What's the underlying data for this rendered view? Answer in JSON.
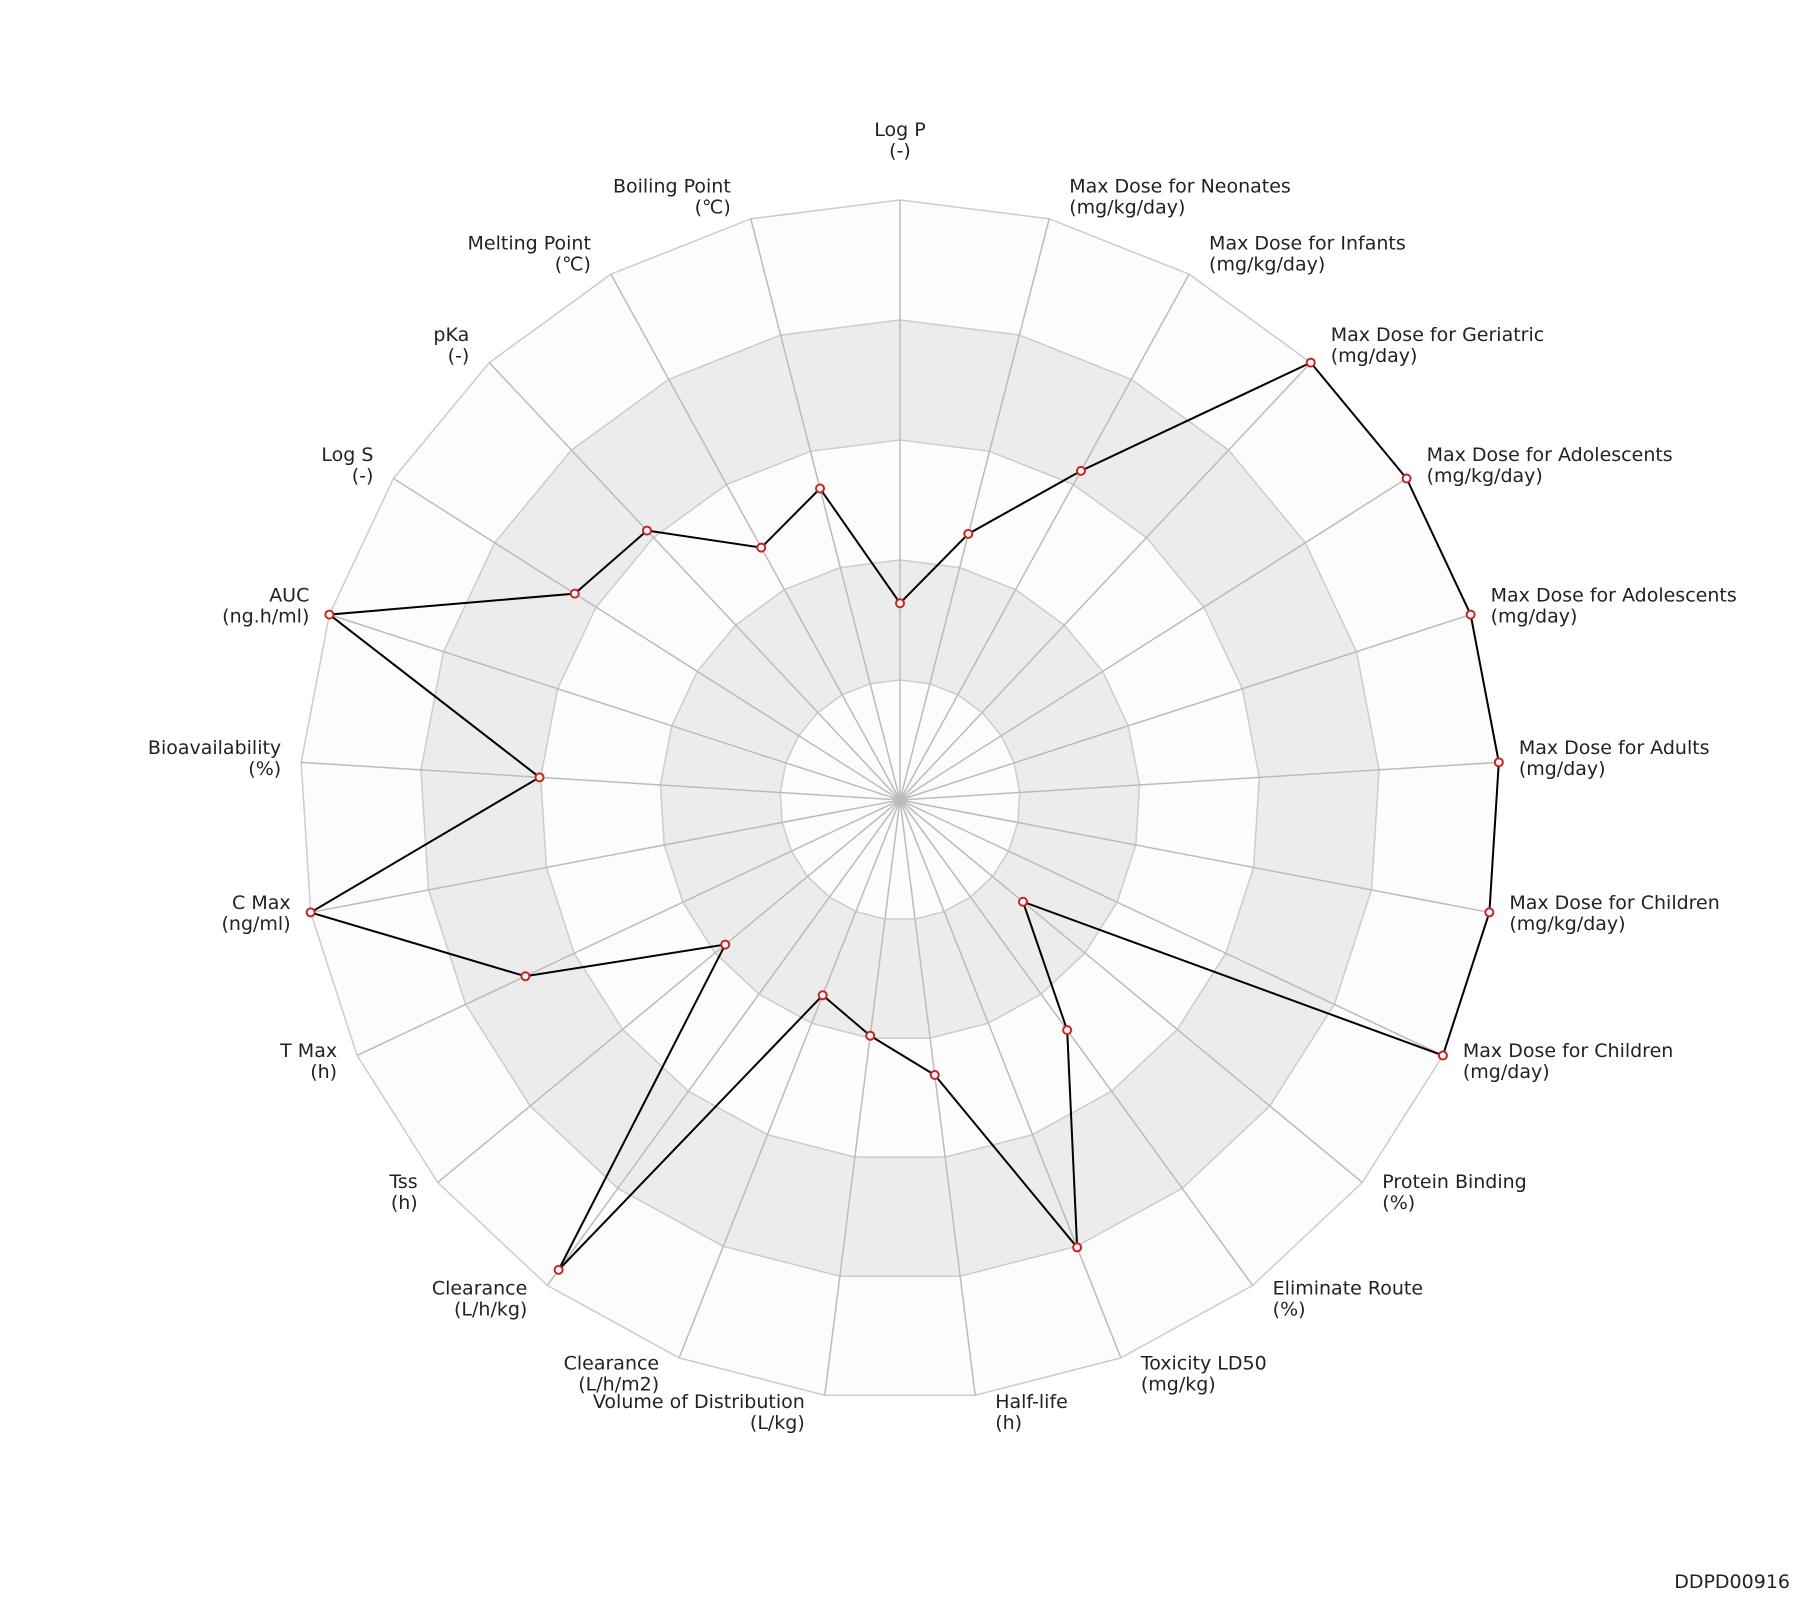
{
  "page_id": "DDPD00916",
  "chart_data": {
    "type": "radar",
    "axes": [
      {
        "name": "Log P",
        "unit": "(-)"
      },
      {
        "name": "Max Dose for Neonates",
        "unit": "(mg/kg/day)"
      },
      {
        "name": "Max Dose for Infants",
        "unit": "(mg/kg/day)"
      },
      {
        "name": "Max Dose for Geriatric",
        "unit": "(mg/day)"
      },
      {
        "name": "Max Dose for Adolescents",
        "unit": "(mg/kg/day)"
      },
      {
        "name": "Max Dose for Adolescents",
        "unit": "(mg/day)"
      },
      {
        "name": "Max Dose for Adults",
        "unit": "(mg/day)"
      },
      {
        "name": "Max Dose for Children",
        "unit": "(mg/kg/day)"
      },
      {
        "name": "Max Dose for Children",
        "unit": "(mg/day)"
      },
      {
        "name": "Protein Binding",
        "unit": "(%)"
      },
      {
        "name": "Eliminate Route",
        "unit": "(%)"
      },
      {
        "name": "Toxicity LD50",
        "unit": "(mg/kg)"
      },
      {
        "name": "Half-life",
        "unit": "(h)"
      },
      {
        "name": "Volume of Distribution",
        "unit": "(L/kg)"
      },
      {
        "name": "Clearance",
        "unit": "(L/h/m2)"
      },
      {
        "name": "Clearance",
        "unit": "(L/h/kg)"
      },
      {
        "name": "Tss",
        "unit": "(h)"
      },
      {
        "name": "T Max",
        "unit": "(h)"
      },
      {
        "name": "C Max",
        "unit": "(ng/ml)"
      },
      {
        "name": "Bioavailability",
        "unit": "(%)"
      },
      {
        "name": "AUC",
        "unit": "(ng.h/ml)"
      },
      {
        "name": "Log S",
        "unit": "(-)"
      },
      {
        "name": "pKa",
        "unit": "(-)"
      },
      {
        "name": "Melting Point",
        "unit": "(℃)"
      },
      {
        "name": "Boiling Point",
        "unit": "(℃)"
      }
    ],
    "values": [
      1.64,
      2.29,
      3.13,
      5,
      5,
      5,
      5,
      5,
      5,
      1.33,
      2.37,
      4.01,
      2.31,
      1.98,
      1.75,
      4.84,
      1.89,
      3.45,
      5,
      3.01,
      5,
      3.21,
      3.08,
      2.4,
      2.68
    ],
    "rlim": [
      0,
      5
    ],
    "rticks": [
      1,
      2,
      3,
      4,
      5
    ],
    "color": "#000000",
    "marker_color": "#cc2222"
  }
}
